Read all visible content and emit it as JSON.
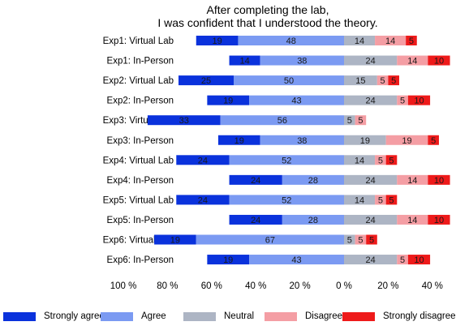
{
  "chart_data": {
    "type": "bar",
    "orientation": "horizontal-diverging",
    "title": [
      "After completing the lab,",
      "I was confident that I understood the theory."
    ],
    "categories": [
      "Exp1: Virtual Lab",
      "Exp1: In-Person",
      "Exp2: Virtual Lab",
      "Exp2: In-Person",
      "Exp3: Virtual Lab",
      "Exp3: In-Person",
      "Exp4: Virtual Lab",
      "Exp4: In-Person",
      "Exp5: Virtual Lab",
      "Exp5: In-Person",
      "Exp6: Virtual Lab",
      "Exp6: In-Person"
    ],
    "series": [
      {
        "name": "Strongly agree",
        "color": "#0a32dc",
        "values": [
          19,
          14,
          25,
          19,
          33,
          19,
          24,
          24,
          24,
          24,
          19,
          19
        ]
      },
      {
        "name": "Agree",
        "color": "#7b9af2",
        "values": [
          48,
          38,
          50,
          43,
          56,
          38,
          52,
          28,
          52,
          28,
          67,
          43
        ]
      },
      {
        "name": "Neutral",
        "color": "#adb5c4",
        "values": [
          14,
          24,
          15,
          24,
          5,
          19,
          14,
          24,
          14,
          24,
          5,
          24
        ]
      },
      {
        "name": "Disagree",
        "color": "#f49ea4",
        "values": [
          14,
          14,
          5,
          5,
          5,
          19,
          5,
          14,
          5,
          14,
          5,
          5
        ]
      },
      {
        "name": "Strongly disagree",
        "color": "#ee1a1a",
        "values": [
          5,
          10,
          5,
          10,
          0,
          5,
          5,
          10,
          5,
          10,
          5,
          10
        ]
      }
    ],
    "xlim": [
      -100,
      40
    ],
    "xticks": [
      -100,
      -80,
      -60,
      -40,
      -20,
      0,
      20,
      40
    ],
    "xtick_labels": [
      "100 %",
      "80 %",
      "60 %",
      "40 %",
      "20 %",
      "0 %",
      "20 %",
      "40 %"
    ],
    "legend_position": "bottom",
    "grid": false
  }
}
